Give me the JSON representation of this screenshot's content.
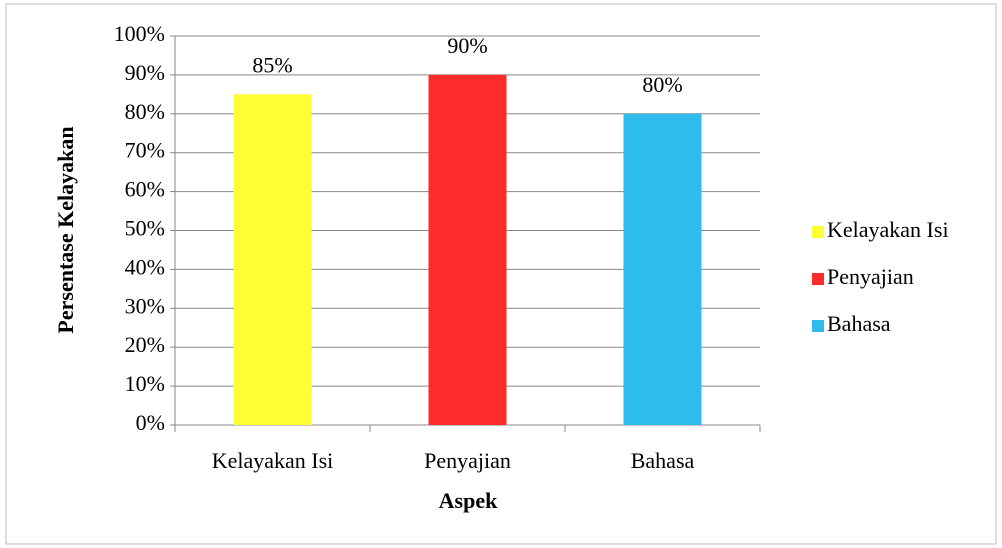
{
  "chart_data": {
    "type": "bar",
    "x_label": "Aspek",
    "y_label": "Persentase Kelayakan",
    "categories": [
      "Kelayakan Isi",
      "Penyajian",
      "Bahasa"
    ],
    "values": [
      85,
      90,
      80
    ],
    "value_labels": [
      "85%",
      "90%",
      "80%"
    ],
    "colors": [
      "#ffff33",
      "#ff2b2b",
      "#2dbcec"
    ],
    "ylim": [
      0,
      100
    ],
    "yticks": [
      {
        "value": 0,
        "label": "0%"
      },
      {
        "value": 10,
        "label": "10%"
      },
      {
        "value": 20,
        "label": "20%"
      },
      {
        "value": 30,
        "label": "30%"
      },
      {
        "value": 40,
        "label": "40%"
      },
      {
        "value": 50,
        "label": "50%"
      },
      {
        "value": 60,
        "label": "60%"
      },
      {
        "value": 70,
        "label": "70%"
      },
      {
        "value": 80,
        "label": "80%"
      },
      {
        "value": 90,
        "label": "90%"
      },
      {
        "value": 100,
        "label": "100%"
      }
    ],
    "grid": true,
    "legend": "right"
  }
}
